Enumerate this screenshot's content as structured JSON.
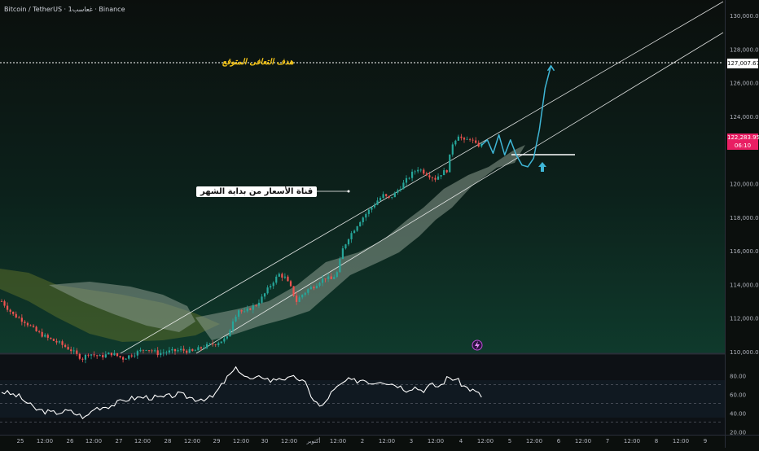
{
  "header": {
    "symbol_title": "Bitcoin / TetherUS · 1غعاسب · Binance"
  },
  "annotations": {
    "target_label": "هدف التعافى المتوقع",
    "channel_label": "قناة الأسعار من بداية الشهر"
  },
  "price_axis": {
    "labels": [
      "130,000.00",
      "128,000.00",
      "126,000.00",
      "124,000.00",
      "120,000.00",
      "118,000.00",
      "116,000.00",
      "114,000.00",
      "112,000.00",
      "110,000.00"
    ],
    "target_price": "127,007.67",
    "last_price": "122,283.95",
    "countdown": "06:10"
  },
  "time_axis": {
    "labels": [
      "25",
      "12:00",
      "26",
      "12:00",
      "27",
      "12:00",
      "28",
      "12:00",
      "29",
      "12:00",
      "30",
      "12:00",
      "أكتوبر",
      "12:00",
      "2",
      "12:00",
      "3",
      "12:00",
      "4",
      "12:00",
      "5",
      "12:00",
      "6",
      "12:00",
      "7",
      "12:00",
      "8",
      "12:00",
      "9"
    ]
  },
  "rsi_axis": {
    "labels": [
      "80.00",
      "60.00",
      "40.00",
      "20.00"
    ]
  },
  "colors": {
    "background": "#0b0f0d",
    "bullish": "#26a69a",
    "bearish": "#ef5350",
    "cloud": "#8a9a8e",
    "target_text": "#f5c518",
    "projection": "#3fb6d6",
    "last_price_bg": "#e91e63"
  },
  "icons": {
    "arrow": "up-arrow-icon",
    "bolt": "lightning-icon"
  },
  "chart_data": {
    "type": "candlestick",
    "title": "Bitcoin / TetherUS · 1غعاسب · Binance",
    "ylim": [
      109000,
      131000
    ],
    "close_path": [
      [
        0,
        113000
      ],
      [
        4,
        112200
      ],
      [
        8,
        111800
      ],
      [
        12,
        111200
      ],
      [
        16,
        110800
      ],
      [
        20,
        110500
      ],
      [
        24,
        110100
      ],
      [
        26,
        109800
      ],
      [
        28,
        109600
      ],
      [
        30,
        109900
      ],
      [
        34,
        109700
      ],
      [
        38,
        109900
      ],
      [
        42,
        109600
      ],
      [
        46,
        109900
      ],
      [
        50,
        110200
      ],
      [
        54,
        109900
      ],
      [
        58,
        110000
      ],
      [
        62,
        110100
      ],
      [
        66,
        110000
      ],
      [
        70,
        110300
      ],
      [
        74,
        110500
      ],
      [
        78,
        110800
      ],
      [
        80,
        111900
      ],
      [
        82,
        112500
      ],
      [
        84,
        112300
      ],
      [
        86,
        112600
      ],
      [
        88,
        112800
      ],
      [
        90,
        113200
      ],
      [
        92,
        113700
      ],
      [
        94,
        114200
      ],
      [
        96,
        114600
      ],
      [
        98,
        114400
      ],
      [
        100,
        113800
      ],
      [
        102,
        113000
      ],
      [
        104,
        113400
      ],
      [
        106,
        113700
      ],
      [
        108,
        113900
      ],
      [
        110,
        114200
      ],
      [
        112,
        114400
      ],
      [
        114,
        114300
      ],
      [
        116,
        114700
      ],
      [
        118,
        116100
      ],
      [
        120,
        116800
      ],
      [
        122,
        117300
      ],
      [
        124,
        117800
      ],
      [
        126,
        118200
      ],
      [
        128,
        118600
      ],
      [
        130,
        119000
      ],
      [
        132,
        119300
      ],
      [
        134,
        119100
      ],
      [
        136,
        119400
      ],
      [
        138,
        119800
      ],
      [
        140,
        120200
      ],
      [
        142,
        120600
      ],
      [
        144,
        120900
      ],
      [
        146,
        120700
      ],
      [
        148,
        120500
      ],
      [
        150,
        120300
      ],
      [
        152,
        120600
      ],
      [
        154,
        120800
      ],
      [
        156,
        122400
      ],
      [
        158,
        122900
      ],
      [
        160,
        122500
      ],
      [
        162,
        122700
      ],
      [
        164,
        122300
      ],
      [
        166,
        122284
      ]
    ],
    "projection_path": [
      [
        168,
        122600
      ],
      [
        170,
        121800
      ],
      [
        172,
        122900
      ],
      [
        174,
        121700
      ],
      [
        176,
        122600
      ],
      [
        178,
        121700
      ],
      [
        180,
        121100
      ],
      [
        182,
        121000
      ],
      [
        184,
        121500
      ],
      [
        186,
        123200
      ],
      [
        188,
        125700
      ],
      [
        190,
        127008
      ]
    ],
    "support_level": 121200,
    "target_level": 127007.67,
    "rsi": {
      "ylim": [
        15,
        95
      ],
      "overbought": 70,
      "midline": 50,
      "oversold": 30,
      "values": [
        [
          0,
          63
        ],
        [
          4,
          58
        ],
        [
          8,
          44
        ],
        [
          12,
          40
        ],
        [
          16,
          42
        ],
        [
          20,
          35
        ],
        [
          22,
          45
        ],
        [
          26,
          48
        ],
        [
          30,
          55
        ],
        [
          34,
          57
        ],
        [
          38,
          56
        ],
        [
          42,
          60
        ],
        [
          46,
          55
        ],
        [
          50,
          56
        ],
        [
          52,
          68
        ],
        [
          54,
          80
        ],
        [
          56,
          88
        ],
        [
          58,
          78
        ],
        [
          60,
          75
        ],
        [
          62,
          80
        ],
        [
          64,
          74
        ],
        [
          66,
          78
        ],
        [
          68,
          76
        ],
        [
          70,
          78
        ],
        [
          72,
          72
        ],
        [
          74,
          55
        ],
        [
          76,
          45
        ],
        [
          78,
          60
        ],
        [
          80,
          68
        ],
        [
          82,
          75
        ],
        [
          84,
          74
        ],
        [
          86,
          76
        ],
        [
          88,
          72
        ],
        [
          90,
          75
        ],
        [
          92,
          72
        ],
        [
          94,
          70
        ],
        [
          96,
          65
        ],
        [
          98,
          68
        ],
        [
          100,
          64
        ],
        [
          102,
          70
        ],
        [
          104,
          68
        ],
        [
          106,
          78
        ],
        [
          108,
          76
        ],
        [
          110,
          68
        ],
        [
          112,
          64
        ],
        [
          114,
          58
        ]
      ]
    }
  }
}
